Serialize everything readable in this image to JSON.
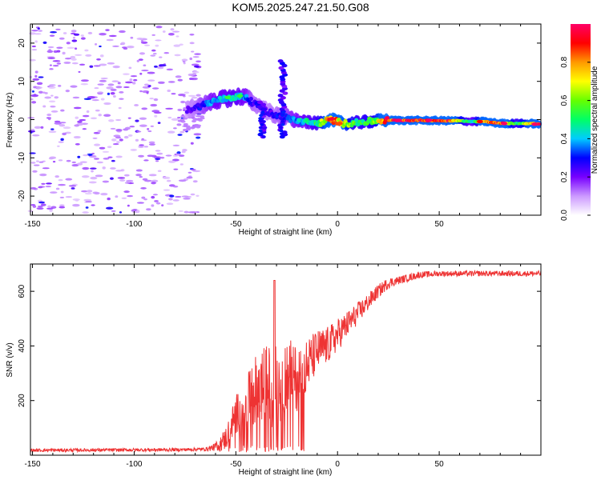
{
  "title": "KOM5.2025.247.21.50.G08",
  "chart_data": [
    {
      "type": "heatmap",
      "title": "KOM5.2025.247.21.50.G08",
      "xlabel": "Height of straight line (km)",
      "ylabel": "Frequency (Hz)",
      "xlim": [
        -151,
        100
      ],
      "ylim": [
        -25,
        25
      ],
      "xticks": [
        -150,
        -100,
        -50,
        0,
        50
      ],
      "yticks": [
        -20,
        -10,
        0,
        10,
        20
      ],
      "colorbar": {
        "label": "Normalized spectral amplitude",
        "range": [
          0,
          1
        ],
        "ticks": [
          "0.0",
          "0.2",
          "0.4",
          "0.6",
          "0.8"
        ],
        "tick_values": [
          0.0,
          0.2,
          0.4,
          0.6,
          0.8
        ],
        "colors": [
          "#ffffff",
          "#cc99ff",
          "#7700ff",
          "#0000ff",
          "#00ccff",
          "#00ff66",
          "#66ff00",
          "#ffff00",
          "#ff9900",
          "#ff0000",
          "#ff0066"
        ]
      },
      "noise_region_x": [
        -151,
        -68
      ],
      "noise_amplitude": 0.13,
      "ridge": [
        {
          "x": -74,
          "f": 2.5,
          "a": 0.22
        },
        {
          "x": -68,
          "f": 3.5,
          "a": 0.3
        },
        {
          "x": -60,
          "f": 5.0,
          "a": 0.45
        },
        {
          "x": -50,
          "f": 6.0,
          "a": 0.5
        },
        {
          "x": -45,
          "f": 6.0,
          "a": 0.42
        },
        {
          "x": -42,
          "f": 4.5,
          "a": 0.3
        },
        {
          "x": -38,
          "f": 3.5,
          "a": 0.28
        },
        {
          "x": -34,
          "f": 2.0,
          "a": 0.25
        },
        {
          "x": -30,
          "f": 1.0,
          "a": 0.3
        },
        {
          "x": -25,
          "f": 0.5,
          "a": 0.35
        },
        {
          "x": -18,
          "f": -0.5,
          "a": 0.45
        },
        {
          "x": -10,
          "f": -1.0,
          "a": 0.55
        },
        {
          "x": -3,
          "f": 0.0,
          "a": 0.95
        },
        {
          "x": 3,
          "f": -1.0,
          "a": 0.75
        },
        {
          "x": 10,
          "f": -0.8,
          "a": 0.55
        },
        {
          "x": 18,
          "f": -0.3,
          "a": 0.62
        },
        {
          "x": 25,
          "f": -0.2,
          "a": 1.0
        },
        {
          "x": 40,
          "f": -0.2,
          "a": 1.0
        },
        {
          "x": 55,
          "f": -0.3,
          "a": 1.0
        },
        {
          "x": 60,
          "f": -0.3,
          "a": 0.7
        },
        {
          "x": 66,
          "f": -0.5,
          "a": 0.45
        },
        {
          "x": 72,
          "f": -0.5,
          "a": 0.9
        },
        {
          "x": 80,
          "f": -1.0,
          "a": 1.0
        },
        {
          "x": 88,
          "f": -1.0,
          "a": 0.55
        },
        {
          "x": 95,
          "f": -1.0,
          "a": 0.8
        },
        {
          "x": 99,
          "f": -1.2,
          "a": 1.0
        }
      ],
      "spikes": [
        {
          "x": -27,
          "f_range": [
            -4.5,
            15.5
          ]
        },
        {
          "x": -37,
          "f_range": [
            -4.5,
            5
          ]
        }
      ]
    },
    {
      "type": "line",
      "xlabel": "Height of straight line (km)",
      "ylabel": "SNR (v/v)",
      "xlim": [
        -151,
        100
      ],
      "ylim": [
        0,
        700
      ],
      "xticks": [
        -150,
        -100,
        -50,
        0,
        50
      ],
      "yticks": [
        200,
        400,
        600
      ],
      "line_color": "#ee3333",
      "envelope_x": [
        -151,
        -80,
        -65,
        -60,
        -55,
        -50,
        -45,
        -40,
        -35,
        -30,
        -25,
        -20,
        -15,
        -10,
        -5,
        0,
        5,
        10,
        15,
        20,
        25,
        30,
        40,
        50,
        60,
        70,
        80,
        90,
        100
      ],
      "envelope_y": [
        18,
        20,
        22,
        30,
        60,
        150,
        180,
        240,
        260,
        250,
        300,
        280,
        330,
        380,
        400,
        440,
        480,
        520,
        560,
        600,
        630,
        640,
        660,
        665,
        665,
        665,
        665,
        665,
        665
      ],
      "amplitude_x": [
        -151,
        -65,
        -60,
        -50,
        -40,
        -30,
        -20,
        -10,
        0,
        10,
        20,
        30,
        50,
        100
      ],
      "amplitude_y": [
        6,
        6,
        15,
        70,
        130,
        160,
        120,
        80,
        60,
        40,
        25,
        15,
        10,
        10
      ]
    }
  ]
}
